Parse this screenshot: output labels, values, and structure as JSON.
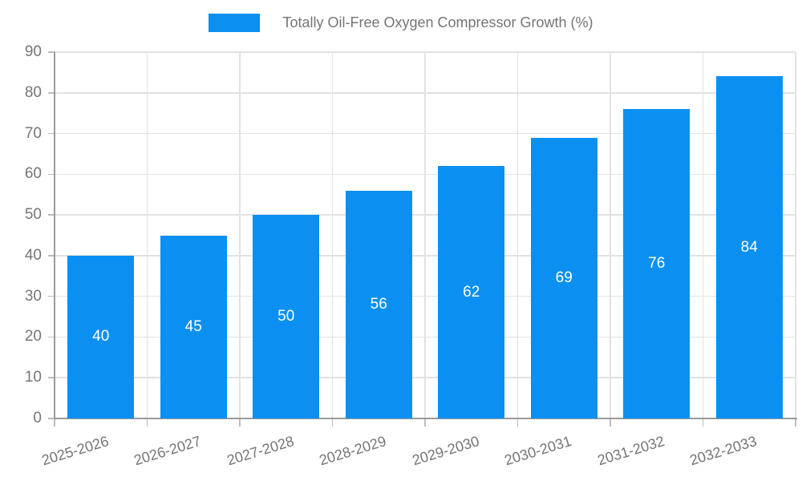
{
  "chart_data": {
    "type": "bar",
    "title": "Totally Oil-Free Oxygen Compressor Growth (%)",
    "legend": {
      "position": "top",
      "label": "Totally Oil-Free Oxygen Compressor Growth (%)"
    },
    "categories": [
      "2025-2026",
      "2026-2027",
      "2027-2028",
      "2028-2029",
      "2029-2030",
      "2030-2031",
      "2031-2032",
      "2032-2033"
    ],
    "values": [
      40,
      45,
      50,
      56,
      62,
      69,
      76,
      84
    ],
    "xlabel": "",
    "ylabel": "",
    "ylim": [
      0,
      90
    ],
    "ytick_step": 10,
    "yticks": [
      0,
      10,
      20,
      30,
      40,
      50,
      60,
      70,
      80,
      90
    ],
    "grid": true,
    "value_labels": "inside-center",
    "colors": {
      "bar": "#0b90f2",
      "value_label": "#ffffff",
      "grid": "#e2e2e2",
      "axis": "#9a9a9a",
      "tick": "#bdbdbd",
      "text": "#757575"
    }
  }
}
